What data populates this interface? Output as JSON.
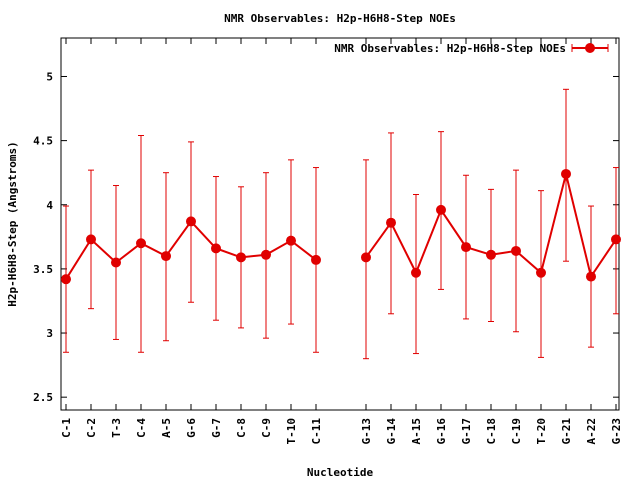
{
  "chart_data": {
    "type": "line",
    "title": "NMR Observables: H2p-H6H8-Step NOEs",
    "xlabel": "Nucleotide",
    "ylabel": "H2p-H6H8-Step (Angstroms)",
    "ylim": [
      2.4,
      5.3
    ],
    "y_ticks": [
      "2.5",
      "3",
      "3.5",
      "4",
      "4.5",
      "5"
    ],
    "legend_position": "top-right",
    "grid": false,
    "color": "#e00000",
    "x_ticks": [
      "C-1",
      "C-2",
      "T-3",
      "C-4",
      "A-5",
      "G-6",
      "G-7",
      "C-8",
      "C-9",
      "T-10",
      "C-11",
      "G-13",
      "G-14",
      "A-15",
      "G-16",
      "G-17",
      "C-18",
      "C-19",
      "T-20",
      "G-21",
      "A-22",
      "G-23"
    ],
    "series": [
      {
        "name": "NMR Observables: H2p-H6H8-Step NOEs",
        "segments": [
          {
            "x": [
              "C-1",
              "C-2",
              "T-3",
              "C-4",
              "A-5",
              "G-6",
              "G-7",
              "C-8",
              "C-9",
              "T-10",
              "C-11"
            ],
            "values": [
              3.42,
              3.73,
              3.55,
              3.7,
              3.6,
              3.87,
              3.66,
              3.59,
              3.61,
              3.72,
              3.57
            ],
            "lower": [
              2.85,
              3.19,
              2.95,
              2.85,
              2.94,
              3.24,
              3.1,
              3.04,
              2.96,
              3.07,
              2.85
            ],
            "upper": [
              3.99,
              4.27,
              4.15,
              4.54,
              4.25,
              4.49,
              4.22,
              4.14,
              4.25,
              4.35,
              4.29
            ]
          },
          {
            "x": [
              "G-13",
              "G-14",
              "A-15",
              "G-16",
              "G-17",
              "C-18",
              "C-19",
              "T-20",
              "G-21",
              "A-22",
              "G-23"
            ],
            "values": [
              3.59,
              3.86,
              3.47,
              3.96,
              3.67,
              3.61,
              3.64,
              3.47,
              4.24,
              3.44,
              3.73
            ],
            "lower": [
              2.8,
              3.15,
              2.84,
              3.34,
              3.11,
              3.09,
              3.01,
              2.81,
              3.56,
              2.89,
              3.15
            ],
            "upper": [
              4.35,
              4.56,
              4.08,
              4.57,
              4.23,
              4.12,
              4.27,
              4.11,
              4.9,
              3.99,
              4.29
            ]
          }
        ]
      }
    ]
  }
}
